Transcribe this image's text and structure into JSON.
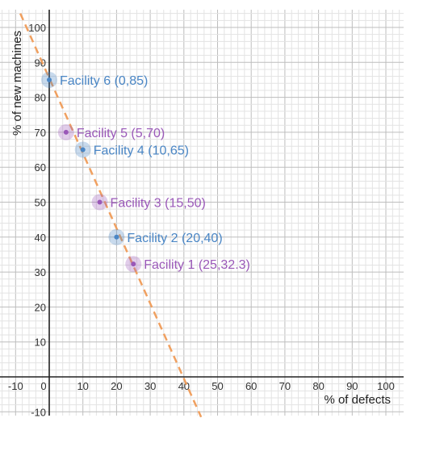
{
  "chart_data": {
    "type": "scatter",
    "xlabel": "% of defects",
    "ylabel": "% of new machines",
    "xlim": [
      -10,
      100
    ],
    "ylim": [
      -10,
      100
    ],
    "x_ticks": [
      -10,
      0,
      10,
      20,
      30,
      40,
      50,
      60,
      70,
      80,
      90,
      100
    ],
    "y_ticks": [
      -10,
      10,
      20,
      30,
      40,
      50,
      60,
      70,
      80,
      90,
      100
    ],
    "grid": true,
    "points": [
      {
        "x": 0,
        "y": 85,
        "label": "Facility 6 (0,85)",
        "color": "#4a86c5"
      },
      {
        "x": 5,
        "y": 70,
        "label": "Facility 5 (5,70)",
        "color": "#9a58b8"
      },
      {
        "x": 10,
        "y": 65,
        "label": "Facility 4 (10,65)",
        "color": "#4a86c5"
      },
      {
        "x": 15,
        "y": 50,
        "label": "Facility 3 (15,50)",
        "color": "#9a58b8"
      },
      {
        "x": 20,
        "y": 40,
        "label": "Facility 2 (20,40)",
        "color": "#4a86c5"
      },
      {
        "x": 25,
        "y": 32.3,
        "label": "Facility 1 (25,32.3)",
        "color": "#9a58b8"
      }
    ],
    "trend_line": {
      "slope": -2.15,
      "intercept": 85.5,
      "color": "#f0a060",
      "style": "dashed"
    }
  }
}
